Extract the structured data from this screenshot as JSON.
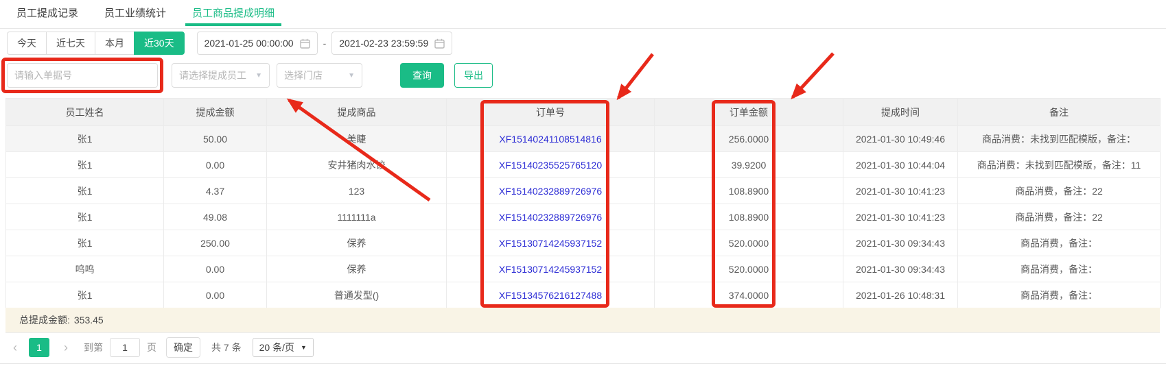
{
  "tabs": [
    {
      "label": "员工提成记录"
    },
    {
      "label": "员工业绩统计"
    },
    {
      "label": "员工商品提成明细"
    }
  ],
  "filters": {
    "quick_ranges": [
      "今天",
      "近七天",
      "本月",
      "近30天"
    ],
    "selected_range": "近30天",
    "date_start": "2021-01-25 00:00:00",
    "date_end": "2021-02-23 23:59:59",
    "date_separator": "-",
    "order_no_placeholder": "请输入单据号",
    "employee_placeholder": "请选择提成员工",
    "store_placeholder": "选择门店",
    "search_label": "查询",
    "export_label": "导出"
  },
  "table": {
    "columns": [
      "员工姓名",
      "提成金额",
      "提成商品",
      "订单号",
      "订单金额",
      "提成时间",
      "备注"
    ],
    "rows": [
      [
        "张1",
        "50.00",
        "美睫",
        "XF15140241108514816",
        "256.0000",
        "2021-01-30 10:49:46",
        "商品消费：未找到匹配模版，备注："
      ],
      [
        "张1",
        "0.00",
        "安井猪肉水饺",
        "XF15140235525765120",
        "39.9200",
        "2021-01-30 10:44:04",
        "商品消费：未找到匹配模版，备注：11"
      ],
      [
        "张1",
        "4.37",
        "123",
        "XF15140232889726976",
        "108.8900",
        "2021-01-30 10:41:23",
        "商品消费，备注：22"
      ],
      [
        "张1",
        "49.08",
        "1111111a",
        "XF15140232889726976",
        "108.8900",
        "2021-01-30 10:41:23",
        "商品消费，备注：22"
      ],
      [
        "张1",
        "250.00",
        "保养",
        "XF15130714245937152",
        "520.0000",
        "2021-01-30 09:34:43",
        "商品消费，备注："
      ],
      [
        "呜呜",
        "0.00",
        "保养",
        "XF15130714245937152",
        "520.0000",
        "2021-01-30 09:34:43",
        "商品消费，备注："
      ],
      [
        "张1",
        "0.00",
        "普通发型()",
        "XF15134576216127488",
        "374.0000",
        "2021-01-26 10:48:31",
        "商品消费，备注："
      ]
    ],
    "summary_label": "总提成金额:",
    "summary_value": "353.45"
  },
  "pagination": {
    "prev_icon": "‹",
    "next_icon": "›",
    "current_page": "1",
    "goto_label": "到第",
    "goto_value": "1",
    "page_unit": "页",
    "confirm_label": "确定",
    "total_label": "共 7 条",
    "page_size": "20 条/页"
  },
  "colors": {
    "accent_green": "#1abc86",
    "annotation_red": "#e8291a",
    "order_link_blue": "#2d2dd5"
  }
}
